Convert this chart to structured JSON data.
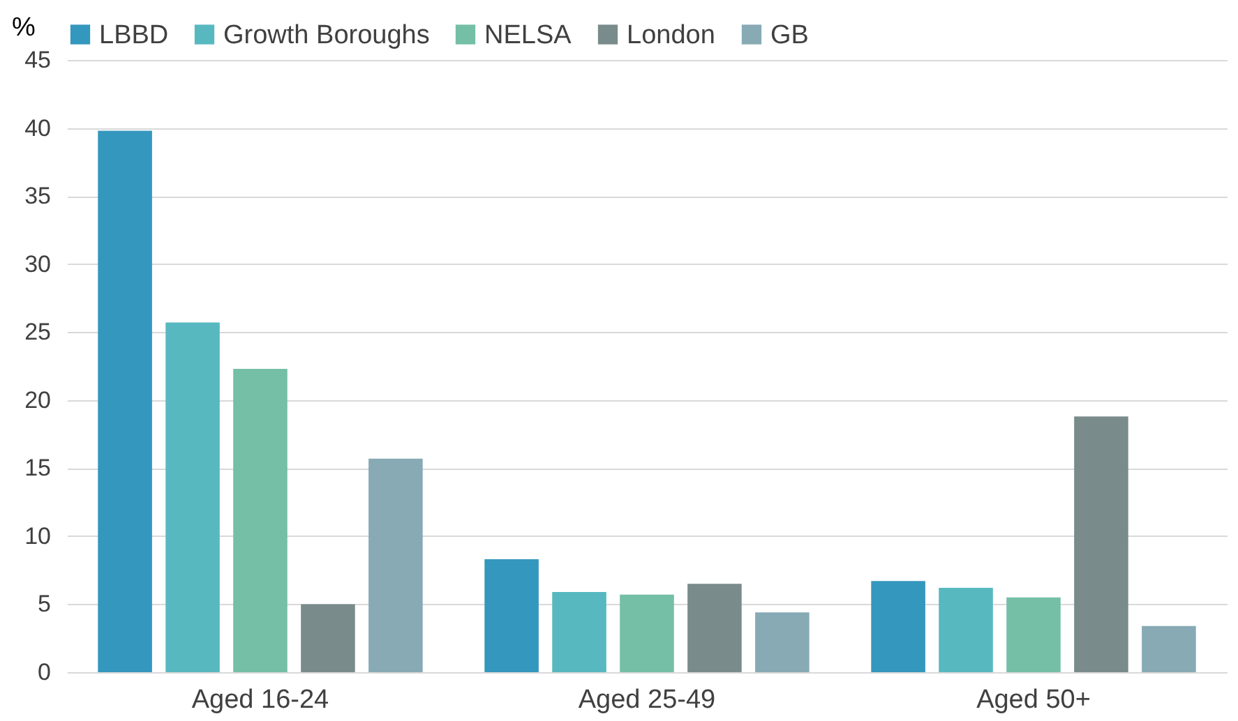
{
  "chart_data": {
    "type": "bar",
    "ylabel": "%",
    "categories": [
      "Aged 16-24",
      "Aged 25-49",
      "Aged 50+"
    ],
    "series": [
      {
        "name": "LBBD",
        "color": "#3497bd",
        "values": [
          39.8,
          8.3,
          6.7
        ]
      },
      {
        "name": "Growth Boroughs",
        "color": "#57b8c0",
        "values": [
          25.7,
          5.9,
          6.2
        ]
      },
      {
        "name": "NELSA",
        "color": "#74bfa5",
        "values": [
          22.3,
          5.7,
          5.5
        ]
      },
      {
        "name": "London",
        "color": "#7a8b8c",
        "values": [
          5.0,
          6.5,
          18.8
        ]
      },
      {
        "name": "GB",
        "color": "#87aab5",
        "values": [
          15.7,
          4.4,
          3.4
        ]
      }
    ],
    "ylim": [
      0,
      45
    ],
    "yticks": [
      0,
      5,
      10,
      15,
      20,
      25,
      30,
      35,
      40,
      45
    ],
    "grid": "y",
    "legend": "top"
  }
}
